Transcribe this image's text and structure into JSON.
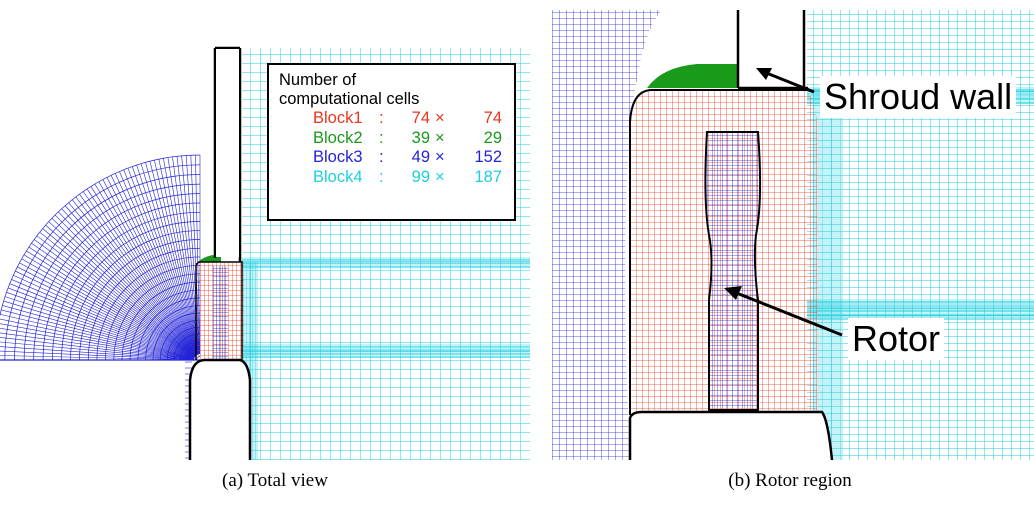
{
  "colors": {
    "block1": "#e8351e",
    "block2": "#1a9a1a",
    "block3": "#2323d8",
    "block4": "#1ecfe0"
  },
  "legend": {
    "title_line1": "Number of",
    "title_line2": "computational cells",
    "rows": [
      {
        "block": "Block1",
        "sep": ":",
        "n1": "74",
        "x": "×",
        "n2": "74"
      },
      {
        "block": "Block2",
        "sep": ":",
        "n1": "39",
        "x": "×",
        "n2": "29"
      },
      {
        "block": "Block3",
        "sep": ":",
        "n1": "49",
        "x": "×",
        "n2": "152"
      },
      {
        "block": "Block4",
        "sep": ":",
        "n1": "99",
        "x": "×",
        "n2": "187"
      }
    ]
  },
  "annotations": {
    "shroud_wall": "Shroud wall",
    "rotor": "Rotor"
  },
  "captions": {
    "a": "(a) Total view",
    "b": "(b) Rotor region"
  }
}
